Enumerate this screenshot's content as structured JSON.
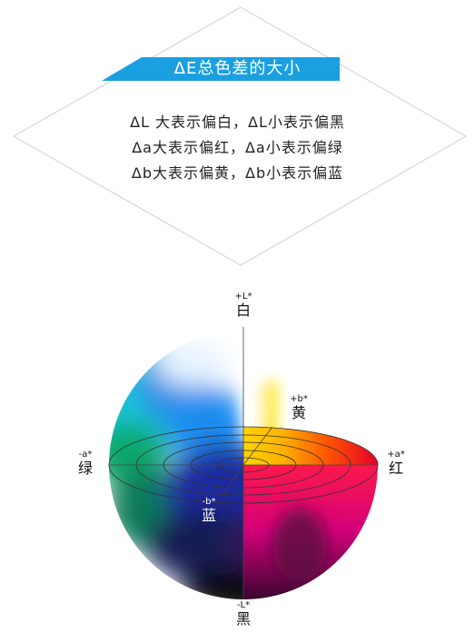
{
  "banner": {
    "title": "ΔE总色差的大小",
    "color": "#1aa0e0"
  },
  "definitions": [
    "ΔL  大表示偏白，ΔL小表示偏黑",
    "Δa大表示偏红，Δa小表示偏绿",
    "Δb大表示偏黄，Δb小表示偏蓝"
  ],
  "axes": {
    "plus_L": {
      "symbol": "+L*",
      "name": "白"
    },
    "minus_L": {
      "symbol": "-L*",
      "name": "黑"
    },
    "plus_a": {
      "symbol": "+a*",
      "name": "红"
    },
    "minus_a": {
      "symbol": "-a*",
      "name": "绿"
    },
    "plus_b": {
      "symbol": "+b*",
      "name": "黄"
    },
    "minus_b": {
      "symbol": "-b*",
      "name": "蓝"
    }
  }
}
